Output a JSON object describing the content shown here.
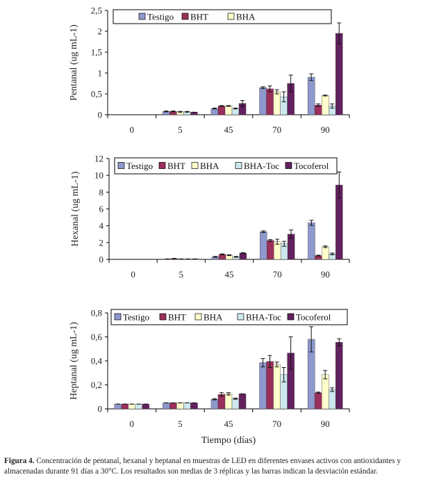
{
  "colors": {
    "Testigo": "#8e98cc",
    "BHT": "#9b2f5c",
    "BHA": "#ffffcc",
    "BHA-Toc": "#cce8ee",
    "Tocoferol": "#63215f"
  },
  "chart_data": [
    {
      "type": "bar",
      "title": "",
      "ylabel": "Pentanal (ug mL-1)",
      "xlabel": "",
      "ylim": [
        0,
        2.5
      ],
      "yticks": [
        "0",
        "0,5",
        "1",
        "1,5",
        "2",
        "2,5"
      ],
      "categories": [
        "0",
        "5",
        "45",
        "70",
        "90"
      ],
      "legend": [
        "Testigo",
        "BHT",
        "BHA"
      ],
      "legend_placement": "top",
      "series": [
        {
          "name": "Testigo",
          "values": [
            0,
            0.08,
            0.15,
            0.65,
            0.9
          ],
          "errors": [
            0,
            0.01,
            0.01,
            0.02,
            0.08
          ]
        },
        {
          "name": "BHT",
          "values": [
            0,
            0.08,
            0.21,
            0.62,
            0.23
          ],
          "errors": [
            0,
            0.01,
            0.01,
            0.07,
            0.03
          ]
        },
        {
          "name": "BHA",
          "values": [
            0,
            0.07,
            0.21,
            0.55,
            0.46
          ],
          "errors": [
            0,
            0.01,
            0.01,
            0.05,
            0.01
          ]
        },
        {
          "name": "BHA-Toc",
          "values": [
            0,
            0.07,
            0.15,
            0.43,
            0.21
          ],
          "errors": [
            0,
            0.01,
            0.01,
            0.12,
            0.05
          ]
        },
        {
          "name": "Tocoferol",
          "values": [
            0,
            0.06,
            0.27,
            0.75,
            1.95
          ],
          "errors": [
            0,
            0,
            0.07,
            0.2,
            0.25
          ]
        }
      ]
    },
    {
      "type": "bar",
      "title": "",
      "ylabel": "Hexanal (ug mL-1)",
      "xlabel": "",
      "ylim": [
        0,
        12
      ],
      "yticks": [
        "0",
        "2",
        "4",
        "6",
        "8",
        "10",
        "12"
      ],
      "categories": [
        "0",
        "5",
        "45",
        "70",
        "90"
      ],
      "legend": [
        "Testigo",
        "BHT",
        "BHA",
        "BHA-Toc",
        "Tocoferol"
      ],
      "legend_placement": "top",
      "series": [
        {
          "name": "Testigo",
          "values": [
            0,
            0.05,
            0.3,
            3.3,
            4.35
          ],
          "errors": [
            0,
            0,
            0.05,
            0.1,
            0.3
          ]
        },
        {
          "name": "BHT",
          "values": [
            0,
            0.1,
            0.6,
            2.25,
            0.45
          ],
          "errors": [
            0,
            0.02,
            0.05,
            0.1,
            0.05
          ]
        },
        {
          "name": "BHA",
          "values": [
            0,
            0.05,
            0.5,
            2.1,
            1.5
          ],
          "errors": [
            0,
            0,
            0.05,
            0.3,
            0.1
          ]
        },
        {
          "name": "BHA-Toc",
          "values": [
            0,
            0.05,
            0.3,
            1.85,
            0.65
          ],
          "errors": [
            0,
            0,
            0.05,
            0.3,
            0.1
          ]
        },
        {
          "name": "Tocoferol",
          "values": [
            0,
            0.05,
            0.75,
            3.0,
            8.85
          ],
          "errors": [
            0,
            0,
            0.05,
            0.5,
            1.55
          ]
        }
      ]
    },
    {
      "type": "bar",
      "title": "",
      "ylabel": "Heptanal (ug mL-1)",
      "xlabel": "Tiempo (días)",
      "ylim": [
        0,
        0.8
      ],
      "yticks": [
        "0",
        "0,2",
        "0,4",
        "0,6",
        "0,8"
      ],
      "categories": [
        "0",
        "5",
        "45",
        "70",
        "90"
      ],
      "legend": [
        "Testigo",
        "BHT",
        "BHA",
        "BHA-Toc",
        "Tocoferol"
      ],
      "legend_placement": "top",
      "series": [
        {
          "name": "Testigo",
          "values": [
            0.04,
            0.05,
            0.08,
            0.385,
            0.58
          ],
          "errors": [
            0,
            0,
            0.005,
            0.035,
            0.105
          ]
        },
        {
          "name": "BHT",
          "values": [
            0.04,
            0.05,
            0.12,
            0.395,
            0.135
          ],
          "errors": [
            0,
            0,
            0.015,
            0.05,
            0.005
          ]
        },
        {
          "name": "BHA",
          "values": [
            0.04,
            0.05,
            0.125,
            0.37,
            0.285
          ],
          "errors": [
            0,
            0,
            0.01,
            0.02,
            0.035
          ]
        },
        {
          "name": "BHA-Toc",
          "values": [
            0.04,
            0.05,
            0.085,
            0.285,
            0.16
          ],
          "errors": [
            0,
            0,
            0.005,
            0.06,
            0.015
          ]
        },
        {
          "name": "Tocoferol",
          "values": [
            0.04,
            0.05,
            0.125,
            0.465,
            0.555
          ],
          "errors": [
            0,
            0,
            0,
            0.135,
            0.03
          ]
        }
      ]
    }
  ],
  "caption": {
    "label": "Figura 4.",
    "text": " Concentración de pentanal, hexanal y heptanal en muestras de LED en diferentes envases activos con antioxidantes y almacenadas durante 91 días a 30°C. Los resultados son medias de 3 réplicas y las barras indican la desviación estándar."
  }
}
